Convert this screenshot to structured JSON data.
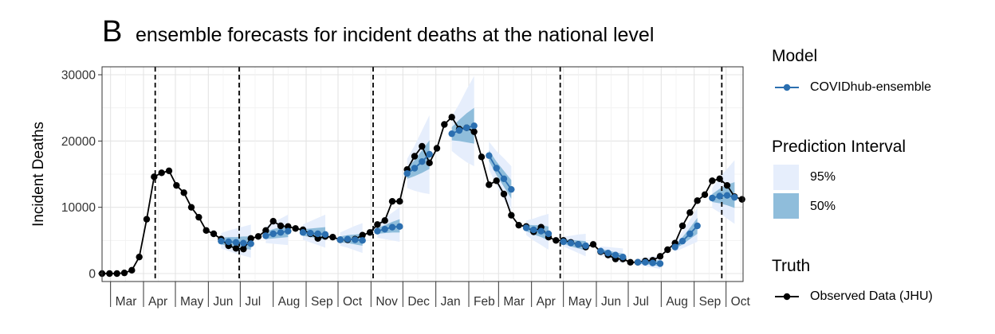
{
  "panel_letter": "B",
  "chart_data": {
    "type": "line",
    "title": "ensemble forecasts for incident deaths at the national level",
    "ylabel": "Incident Deaths",
    "xlabel": "",
    "ylim": [
      -1200,
      31200
    ],
    "yticks": [
      0,
      10000,
      20000,
      30000
    ],
    "ytick_labels": [
      "0",
      "10000",
      "20000",
      "30000"
    ],
    "xlim": [
      "2020-02-22",
      "2021-10-17"
    ],
    "x_month_labels": [
      {
        "date": "2020-03-01",
        "label": "Mar"
      },
      {
        "date": "2020-04-01",
        "label": "Apr"
      },
      {
        "date": "2020-05-01",
        "label": "May"
      },
      {
        "date": "2020-06-01",
        "label": "Jun"
      },
      {
        "date": "2020-07-01",
        "label": "Jul"
      },
      {
        "date": "2020-08-01",
        "label": "Aug"
      },
      {
        "date": "2020-09-01",
        "label": "Sep"
      },
      {
        "date": "2020-10-01",
        "label": "Oct"
      },
      {
        "date": "2020-11-01",
        "label": "Nov"
      },
      {
        "date": "2020-12-01",
        "label": "Dec"
      },
      {
        "date": "2021-01-01",
        "label": "Jan"
      },
      {
        "date": "2021-02-01",
        "label": "Feb"
      },
      {
        "date": "2021-03-01",
        "label": "Mar"
      },
      {
        "date": "2021-04-01",
        "label": "Apr"
      },
      {
        "date": "2021-05-01",
        "label": "May"
      },
      {
        "date": "2021-06-01",
        "label": "Jun"
      },
      {
        "date": "2021-07-01",
        "label": "Jul"
      },
      {
        "date": "2021-08-01",
        "label": "Aug"
      },
      {
        "date": "2021-09-01",
        "label": "Sep"
      },
      {
        "date": "2021-10-01",
        "label": "Oct"
      }
    ],
    "vertical_dashed_lines": [
      "2020-04-12",
      "2020-06-30",
      "2020-11-03",
      "2021-04-28",
      "2021-09-27"
    ],
    "grid": true,
    "legend_position": "right",
    "colors": {
      "observed": "#000000",
      "ensemble": "#2b6fb0",
      "pi95": "#e6eefc",
      "pi50": "#8fbddb"
    },
    "legend": {
      "model_title": "Model",
      "model_entry": "COVIDhub-ensemble",
      "interval_title": "Prediction Interval",
      "interval_entries": [
        "95%",
        "50%"
      ],
      "truth_title": "Truth",
      "truth_entry": "Observed Data (JHU)"
    },
    "observed": {
      "name": "Observed Data (JHU)",
      "x": [
        "2020-02-22",
        "2020-02-29",
        "2020-03-07",
        "2020-03-14",
        "2020-03-21",
        "2020-03-28",
        "2020-04-04",
        "2020-04-11",
        "2020-04-18",
        "2020-04-25",
        "2020-05-02",
        "2020-05-09",
        "2020-05-16",
        "2020-05-23",
        "2020-05-30",
        "2020-06-06",
        "2020-06-13",
        "2020-06-20",
        "2020-06-27",
        "2020-07-04",
        "2020-07-11",
        "2020-07-18",
        "2020-07-25",
        "2020-08-01",
        "2020-08-08",
        "2020-08-15",
        "2020-08-22",
        "2020-08-29",
        "2020-09-05",
        "2020-09-12",
        "2020-09-19",
        "2020-09-26",
        "2020-10-03",
        "2020-10-10",
        "2020-10-17",
        "2020-10-24",
        "2020-10-31",
        "2020-11-07",
        "2020-11-14",
        "2020-11-21",
        "2020-11-28",
        "2020-12-05",
        "2020-12-12",
        "2020-12-19",
        "2020-12-26",
        "2021-01-02",
        "2021-01-09",
        "2021-01-16",
        "2021-01-23",
        "2021-01-30",
        "2021-02-06",
        "2021-02-13",
        "2021-02-20",
        "2021-02-27",
        "2021-03-06",
        "2021-03-13",
        "2021-03-20",
        "2021-03-27",
        "2021-04-03",
        "2021-04-10",
        "2021-04-17",
        "2021-04-24",
        "2021-05-01",
        "2021-05-08",
        "2021-05-15",
        "2021-05-22",
        "2021-05-29",
        "2021-06-05",
        "2021-06-12",
        "2021-06-19",
        "2021-06-26",
        "2021-07-03",
        "2021-07-10",
        "2021-07-17",
        "2021-07-24",
        "2021-07-31",
        "2021-08-07",
        "2021-08-14",
        "2021-08-21",
        "2021-08-28",
        "2021-09-04",
        "2021-09-11",
        "2021-09-18",
        "2021-09-25",
        "2021-10-02",
        "2021-10-09",
        "2021-10-16"
      ],
      "y": [
        0,
        0,
        0,
        100,
        500,
        2500,
        8200,
        14600,
        15200,
        15500,
        13300,
        12200,
        10000,
        8500,
        6500,
        6000,
        5200,
        4200,
        3800,
        3700,
        5300,
        5600,
        6500,
        7900,
        7200,
        7100,
        6800,
        6600,
        6000,
        5300,
        5600,
        5500,
        5100,
        5100,
        5200,
        5800,
        6200,
        7400,
        8000,
        10900,
        10900,
        15700,
        17700,
        19200,
        16700,
        18900,
        22500,
        23600,
        21800,
        22000,
        21400,
        17600,
        13400,
        14000,
        12000,
        8800,
        7300,
        7100,
        6300,
        7000,
        5500,
        5000,
        5000,
        4700,
        4400,
        4000,
        4400,
        3300,
        2800,
        2200,
        2200,
        1700,
        1700,
        1900,
        2000,
        2600,
        3600,
        4600,
        7200,
        9200,
        11000,
        11900,
        14000,
        14300,
        13300,
        11600,
        11200
      ]
    },
    "forecasts": [
      {
        "name": "COVIDhub-ensemble",
        "x": [
          "2020-06-13",
          "2020-06-20",
          "2020-06-27",
          "2020-07-04",
          "2020-07-11"
        ],
        "y": [
          4900,
          4800,
          4700,
          4600,
          4500
        ],
        "pi50_low": [
          4400,
          4200,
          4000,
          3800,
          3600
        ],
        "pi50_high": [
          5400,
          5500,
          5500,
          5600,
          5600
        ],
        "pi95_low": [
          3800,
          3400,
          3000,
          2700,
          2400
        ],
        "pi95_high": [
          6100,
          6500,
          6800,
          7100,
          7400
        ]
      },
      {
        "name": "COVIDhub-ensemble",
        "x": [
          "2020-07-25",
          "2020-08-01",
          "2020-08-08",
          "2020-08-15"
        ],
        "y": [
          5700,
          6000,
          6200,
          6400
        ],
        "pi50_low": [
          5200,
          5300,
          5400,
          5500
        ],
        "pi50_high": [
          6300,
          6700,
          7000,
          7300
        ],
        "pi95_low": [
          4600,
          4500,
          4400,
          4300
        ],
        "pi95_high": [
          7100,
          7700,
          8300,
          8900
        ]
      },
      {
        "name": "COVIDhub-ensemble",
        "x": [
          "2020-08-29",
          "2020-09-05",
          "2020-09-12",
          "2020-09-19"
        ],
        "y": [
          6200,
          6100,
          6000,
          5900
        ],
        "pi50_low": [
          5700,
          5500,
          5300,
          5100
        ],
        "pi50_high": [
          6700,
          6800,
          6900,
          7000
        ],
        "pi95_low": [
          5100,
          4700,
          4300,
          3900
        ],
        "pi95_high": [
          7400,
          7900,
          8400,
          8900
        ]
      },
      {
        "name": "COVIDhub-ensemble",
        "x": [
          "2020-10-03",
          "2020-10-10",
          "2020-10-17",
          "2020-10-24"
        ],
        "y": [
          5100,
          5200,
          5100,
          5000
        ],
        "pi50_low": [
          4700,
          4600,
          4400,
          4200
        ],
        "pi50_high": [
          5600,
          5800,
          5900,
          6000
        ],
        "pi95_low": [
          4200,
          3900,
          3500,
          3100
        ],
        "pi95_high": [
          6200,
          6700,
          7200,
          7600
        ]
      },
      {
        "name": "COVIDhub-ensemble",
        "x": [
          "2020-11-07",
          "2020-11-14",
          "2020-11-21",
          "2020-11-28"
        ],
        "y": [
          6400,
          6700,
          7000,
          7100
        ],
        "pi50_low": [
          6000,
          6100,
          6200,
          6200
        ],
        "pi50_high": [
          6900,
          7300,
          7800,
          8200
        ],
        "pi95_low": [
          5400,
          5200,
          5000,
          4800
        ],
        "pi95_high": [
          7600,
          8400,
          9200,
          10000
        ]
      },
      {
        "name": "COVIDhub-ensemble",
        "x": [
          "2020-12-05",
          "2020-12-12",
          "2020-12-19",
          "2020-12-26"
        ],
        "y": [
          15100,
          15900,
          16900,
          18000
        ],
        "pi50_low": [
          14300,
          14700,
          15200,
          15800
        ],
        "pi50_high": [
          15900,
          17100,
          18600,
          20100
        ],
        "pi95_low": [
          12900,
          12500,
          12200,
          12000
        ],
        "pi95_high": [
          17300,
          19300,
          21600,
          23900
        ]
      },
      {
        "name": "COVIDhub-ensemble",
        "x": [
          "2021-01-16",
          "2021-01-23",
          "2021-01-30",
          "2021-02-06"
        ],
        "y": [
          21100,
          21600,
          22000,
          22300
        ],
        "pi50_low": [
          20100,
          20000,
          19800,
          19600
        ],
        "pi50_high": [
          22100,
          23200,
          24200,
          25000
        ],
        "pi95_low": [
          18500,
          17600,
          16800,
          16200
        ],
        "pi95_high": [
          23700,
          25600,
          27800,
          29800
        ]
      },
      {
        "name": "COVIDhub-ensemble",
        "x": [
          "2021-02-20",
          "2021-02-27",
          "2021-03-06",
          "2021-03-13"
        ],
        "y": [
          17800,
          15900,
          14300,
          12700
        ],
        "pi50_low": [
          17000,
          14900,
          13100,
          11300
        ],
        "pi50_high": [
          18600,
          16900,
          15500,
          14100
        ],
        "pi95_low": [
          15700,
          13300,
          11200,
          9400
        ],
        "pi95_high": [
          19900,
          18500,
          17400,
          16200
        ]
      },
      {
        "name": "COVIDhub-ensemble",
        "x": [
          "2021-03-27",
          "2021-04-03",
          "2021-04-10",
          "2021-04-17"
        ],
        "y": [
          6900,
          6600,
          6400,
          6000
        ],
        "pi50_low": [
          6400,
          5900,
          5500,
          5000
        ],
        "pi50_high": [
          7400,
          7300,
          7300,
          7100
        ],
        "pi95_low": [
          5800,
          5000,
          4300,
          3600
        ],
        "pi95_high": [
          8000,
          8300,
          8700,
          9000
        ]
      },
      {
        "name": "COVIDhub-ensemble",
        "x": [
          "2021-05-01",
          "2021-05-08",
          "2021-05-15",
          "2021-05-22"
        ],
        "y": [
          4800,
          4600,
          4400,
          4200
        ],
        "pi50_low": [
          4500,
          4100,
          3800,
          3500
        ],
        "pi50_high": [
          5200,
          5100,
          5000,
          4900
        ],
        "pi95_low": [
          4100,
          3600,
          3100,
          2600
        ],
        "pi95_high": [
          5600,
          5700,
          5900,
          6000
        ]
      },
      {
        "name": "COVIDhub-ensemble",
        "x": [
          "2021-06-05",
          "2021-06-12",
          "2021-06-19",
          "2021-06-26"
        ],
        "y": [
          3400,
          3100,
          2800,
          2500
        ],
        "pi50_low": [
          3100,
          2800,
          2400,
          2100
        ],
        "pi50_high": [
          3700,
          3500,
          3200,
          3000
        ],
        "pi95_low": [
          2700,
          2300,
          1900,
          1500
        ],
        "pi95_high": [
          4100,
          4000,
          3900,
          3800
        ]
      },
      {
        "name": "COVIDhub-ensemble",
        "x": [
          "2021-07-10",
          "2021-07-17",
          "2021-07-24",
          "2021-07-31"
        ],
        "y": [
          1700,
          1700,
          1600,
          1500
        ],
        "pi50_low": [
          1500,
          1400,
          1300,
          1100
        ],
        "pi50_high": [
          1900,
          2000,
          2000,
          2000
        ],
        "pi95_low": [
          1300,
          1100,
          900,
          700
        ],
        "pi95_high": [
          2200,
          2400,
          2600,
          2700
        ]
      },
      {
        "name": "COVIDhub-ensemble",
        "x": [
          "2021-08-14",
          "2021-08-21",
          "2021-08-28",
          "2021-09-04"
        ],
        "y": [
          4000,
          4900,
          6000,
          7200
        ],
        "pi50_low": [
          3700,
          4400,
          5200,
          6000
        ],
        "pi50_high": [
          4300,
          5500,
          6900,
          8400
        ],
        "pi95_low": [
          3300,
          3800,
          4300,
          4800
        ],
        "pi95_high": [
          4700,
          6300,
          8100,
          9900
        ]
      },
      {
        "name": "COVIDhub-ensemble",
        "x": [
          "2021-09-18",
          "2021-09-25",
          "2021-10-02",
          "2021-10-09"
        ],
        "y": [
          11400,
          11700,
          11800,
          11500
        ],
        "pi50_low": [
          10800,
          10600,
          10300,
          9900
        ],
        "pi50_high": [
          12000,
          12800,
          13400,
          13800
        ],
        "pi95_low": [
          9900,
          9200,
          8300,
          7500
        ],
        "pi95_high": [
          12900,
          14500,
          15800,
          17100
        ]
      }
    ]
  }
}
